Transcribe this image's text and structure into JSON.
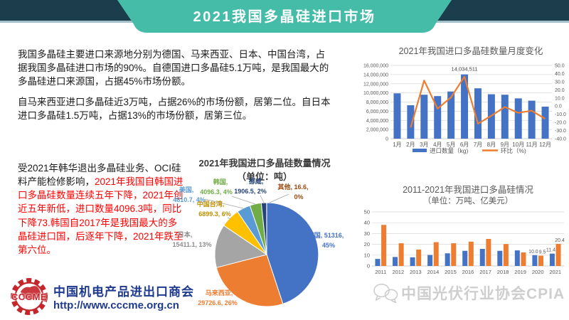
{
  "header": {
    "title": "2021我国多晶硅进口市场",
    "bar_color": "#1C3E4C",
    "underline_color": "#A3C0CA",
    "banner_color": "#45BCA8"
  },
  "paragraphs": {
    "p1": "我国多晶硅主要进口来源地分别为德国、马来西亚、日本、中国台湾，占据我国多晶硅进口市场的90%。自德国进口多晶硅5.1万吨，是我国最大的多晶硅进口来源国，占据45%市场份额。",
    "p2": "自马来西亚进口多晶硅近3万吨，占据26%的市场份额，居第二位。自日本进口多晶硅1.5万吨，占据13%的市场份额，居第三位。",
    "p3_black": "受2021年韩华退出多晶硅业务、OCI硅料产能检修影响，",
    "p3_red": "2021年我国自韩国进口多晶硅数量连续五年下降，2021年创近五年新低，进口数量4096.3吨，同比下降73.韩国自2017年是我国最大的多晶硅进口国，后逐年下降，2021年跌至第六位。"
  },
  "footer_left": {
    "org_abbr": "CCCME",
    "org_name": "中国机电产品进出口商会",
    "url": "http://www.cccme.org.cn",
    "red": "#C5262C",
    "blue": "#1e3a8f"
  },
  "watermark": {
    "icon": "wechat-icon",
    "text": "中国光伏行业协会CPIA",
    "color": "#C6C6C6"
  },
  "colors": {
    "bar_blue": "#4472C4",
    "line_orange": "#ED7D31",
    "grid": "#D9D9D9",
    "axis": "#BFBFBF",
    "tick_text": "#595959",
    "title_gray": "#595959"
  },
  "chart_data": [
    {
      "id": "pie_imports_2021",
      "type": "pie",
      "title": "2021年我国进口多晶硅数量情况",
      "subtitle": "（单位：吨）",
      "legend_position": "callout-labels",
      "slices": [
        {
          "label": "德国",
          "value": 51316,
          "pct": "45%",
          "color": "#4472C4",
          "label_color": "#4472C4",
          "label_lines": [
            "德国, 51316,",
            "45%"
          ]
        },
        {
          "label": "马来西亚",
          "value": 29726.6,
          "pct": "26%",
          "color": "#ED7D31",
          "label_color": "#ED7D31",
          "label_lines": [
            "马来西亚,",
            "29726.6, 26%"
          ]
        },
        {
          "label": "日本",
          "value": 15411.1,
          "pct": "13%",
          "color": "#A5A5A5",
          "label_color": "#8C8C8C",
          "label_lines": [
            "日本,",
            "15411.1, 13%"
          ]
        },
        {
          "label": "中国台湾",
          "value": 6899.3,
          "pct": "6%",
          "color": "#FFC000",
          "label_color": "#BF8F00",
          "label_lines": [
            "中国台湾,",
            "6899.3, 6%"
          ]
        },
        {
          "label": "美国",
          "value": 4810.7,
          "pct": "4%",
          "color": "#5B9BD5",
          "label_color": "#5B9BD5",
          "label_lines": [
            "美国,",
            "4810.7, 4%"
          ]
        },
        {
          "label": "韩国",
          "value": 4096.3,
          "pct": "4%",
          "color": "#70AD47",
          "label_color": "#70AD47",
          "label_lines": [
            "韩国,",
            "4096.3, 4%"
          ]
        },
        {
          "label": "挪威",
          "value": 1906.5,
          "pct": "2%",
          "color": "#264478",
          "label_color": "#264478",
          "label_lines": [
            "挪威,",
            "1906.5, 2%"
          ]
        },
        {
          "label": "其他",
          "value": 16.6,
          "pct": "0%",
          "color": "#9E480E",
          "label_color": "#9E480E",
          "label_lines": [
            "其他, 16.6,",
            "0%"
          ]
        }
      ]
    },
    {
      "id": "monthly_imports_2021",
      "type": "bar+line",
      "title": "2021年我国进口多晶硅数量月度变化",
      "categories": [
        "1月",
        "2月",
        "3月",
        "4月",
        "5月",
        "6月",
        "7月",
        "8月",
        "9月",
        "10月",
        "11月",
        "12月"
      ],
      "bar_series": {
        "name": "进口数量（kg)",
        "color": "#4472C4",
        "values": [
          9900000,
          7300000,
          9600000,
          9300000,
          10300000,
          14034511,
          11000000,
          9700000,
          9600000,
          8800000,
          8300000,
          7000000
        ]
      },
      "line_series": {
        "name": "环比（%)",
        "color": "#ED7D31",
        "values": [
          null,
          -26.3,
          31.5,
          -3.1,
          10.8,
          36.2,
          -21.6,
          -11.8,
          -1.0,
          -8.3,
          -5.7,
          -15.7
        ]
      },
      "left_axis": {
        "min": 0,
        "max": 16000000,
        "step": 2000000,
        "ticks": [
          "0",
          "2,000,000",
          "4,000,000",
          "6,000,000",
          "8,000,000",
          "10,000,000",
          "12,000,000",
          "14,000,000",
          "16,000,000"
        ]
      },
      "right_axis": {
        "min": -40,
        "max": 50,
        "step": 10,
        "ticks": [
          "-40.0",
          "-30.0",
          "-20.0",
          "-10.0",
          "0.0",
          "10.0",
          "20.0",
          "30.0",
          "40.0",
          "50.0"
        ]
      },
      "data_label": {
        "index": 5,
        "text": "14,034,511"
      },
      "legend_position": "bottom",
      "grid": true
    },
    {
      "id": "yearly_imports_2011_2021",
      "type": "bar",
      "title": "2011-2021年我国进口多晶硅情况",
      "subtitle": "（单位：万吨、亿美元）",
      "categories": [
        "2011",
        "2012",
        "2013",
        "2014",
        "2015",
        "2016",
        "2017",
        "2018",
        "2019",
        "2020",
        "2021"
      ],
      "series": [
        {
          "name": "万吨",
          "color": "#4472C4",
          "values": [
            6.5,
            8.3,
            8.0,
            10.2,
            11.7,
            14.0,
            15.8,
            14.0,
            14.4,
            10.0,
            11.4
          ]
        },
        {
          "name": "亿美元",
          "color": "#ED7D31",
          "values": [
            38.0,
            21.0,
            15.2,
            22.0,
            21.0,
            22.5,
            25.0,
            20.3,
            12.5,
            9.5,
            20.4
          ]
        }
      ],
      "y_axis": {
        "min": 0,
        "max": 50,
        "step": 10,
        "ticks": [
          "0",
          "10",
          "20",
          "30",
          "40",
          "50"
        ]
      },
      "bar_labels": [
        {
          "series": 0,
          "index": 9,
          "text": "10.0"
        },
        {
          "series": 1,
          "index": 9,
          "text": "9.5"
        },
        {
          "series": 0,
          "index": 10,
          "text": "11.4"
        },
        {
          "series": 1,
          "index": 10,
          "text": "20.4"
        }
      ],
      "grid": true
    }
  ]
}
